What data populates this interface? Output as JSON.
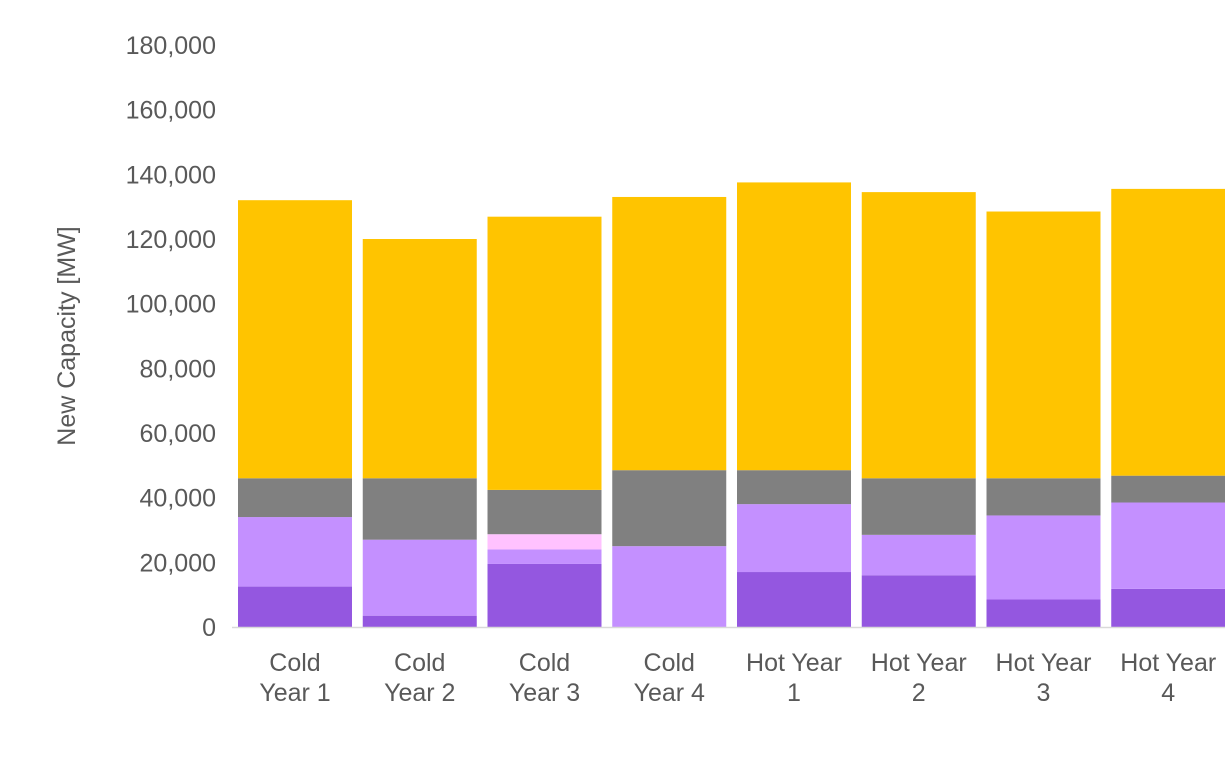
{
  "chart_data": {
    "type": "bar",
    "stacked": true,
    "title": "",
    "xlabel": "",
    "ylabel": "New Capacity [MW]",
    "ylim": [
      0,
      180000
    ],
    "yticks": [
      0,
      20000,
      40000,
      60000,
      80000,
      100000,
      120000,
      140000,
      160000,
      180000
    ],
    "ytick_labels": [
      "0",
      "20,000",
      "40,000",
      "60,000",
      "80,000",
      "100,000",
      "120,000",
      "140,000",
      "160,000",
      "180,000"
    ],
    "grid": false,
    "legend": "none",
    "categories": [
      [
        "Cold",
        "Year 1"
      ],
      [
        "Cold",
        "Year 2"
      ],
      [
        "Cold",
        "Year 3"
      ],
      [
        "Cold",
        "Year 4"
      ],
      [
        "Hot Year",
        "1"
      ],
      [
        "Hot Year",
        "2"
      ],
      [
        "Hot Year",
        "3"
      ],
      [
        "Hot Year",
        "4"
      ]
    ],
    "series": [
      {
        "color": "#9457E0",
        "values": [
          12500,
          3500,
          19500,
          0,
          17000,
          16000,
          8500,
          11800
        ]
      },
      {
        "color": "#C490FF",
        "values": [
          21500,
          23500,
          4500,
          25000,
          21000,
          12500,
          26000,
          26700
        ]
      },
      {
        "color": "#FFC2FF",
        "values": [
          0,
          0,
          4700,
          0,
          0,
          0,
          0,
          0
        ]
      },
      {
        "color": "#808080",
        "values": [
          12000,
          19000,
          13700,
          23500,
          10500,
          17500,
          11500,
          8300
        ]
      },
      {
        "color": "#FFC400",
        "values": [
          86000,
          74000,
          84500,
          84500,
          89000,
          88500,
          82500,
          88700
        ]
      }
    ]
  }
}
